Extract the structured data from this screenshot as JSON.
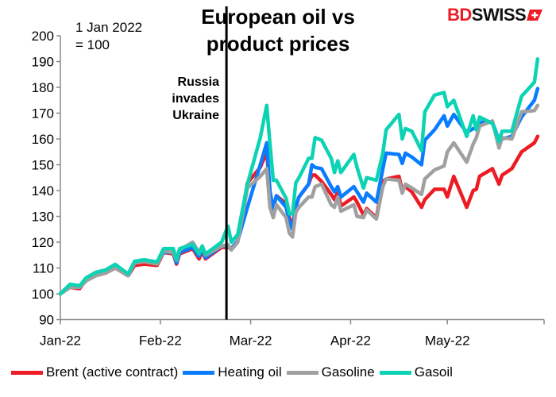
{
  "chart_data": {
    "type": "line",
    "title": "European oil vs product prices",
    "note": "1 Jan 2022\n= 100",
    "annotation": {
      "text": "Russia invades Ukraine",
      "date": "2022-02-22"
    },
    "xlabel": "",
    "ylabel": "",
    "xlim": [
      "2022-01-01",
      "2022-05-31"
    ],
    "ylim": [
      90,
      200
    ],
    "yticks": [
      90,
      100,
      110,
      120,
      130,
      140,
      150,
      160,
      170,
      180,
      190,
      200
    ],
    "xticks": [
      {
        "date": "2022-01-01",
        "label": "Jan-22"
      },
      {
        "date": "2022-02-01",
        "label": "Feb-22"
      },
      {
        "date": "2022-03-01",
        "label": "Mar-22"
      },
      {
        "date": "2022-04-01",
        "label": "Apr-22"
      },
      {
        "date": "2022-05-01",
        "label": "May-22"
      }
    ],
    "grid": false,
    "legend": "bottom",
    "x": [
      "2022-01-01",
      "2022-01-04",
      "2022-01-07",
      "2022-01-09",
      "2022-01-12",
      "2022-01-15",
      "2022-01-18",
      "2022-01-22",
      "2022-01-24",
      "2022-01-27",
      "2022-01-31",
      "2022-02-02",
      "2022-02-05",
      "2022-02-06",
      "2022-02-07",
      "2022-02-11",
      "2022-02-13",
      "2022-02-14",
      "2022-02-15",
      "2022-02-20",
      "2022-02-22",
      "2022-02-23",
      "2022-02-25",
      "2022-02-28",
      "2022-03-04",
      "2022-03-06",
      "2022-03-07",
      "2022-03-08",
      "2022-03-09",
      "2022-03-12",
      "2022-03-13",
      "2022-03-14",
      "2022-03-15",
      "2022-03-16",
      "2022-03-19",
      "2022-03-20",
      "2022-03-21",
      "2022-03-23",
      "2022-03-26",
      "2022-03-27",
      "2022-03-28",
      "2022-03-29",
      "2022-04-02",
      "2022-04-03",
      "2022-04-05",
      "2022-04-06",
      "2022-04-09",
      "2022-04-11",
      "2022-04-12",
      "2022-04-16",
      "2022-04-17",
      "2022-04-18",
      "2022-04-20",
      "2022-04-23",
      "2022-04-24",
      "2022-04-27",
      "2022-04-30",
      "2022-05-01",
      "2022-05-03",
      "2022-05-07",
      "2022-05-09",
      "2022-05-10",
      "2022-05-11",
      "2022-05-15",
      "2022-05-17",
      "2022-05-18",
      "2022-05-21",
      "2022-05-24",
      "2022-05-28",
      "2022-05-29"
    ],
    "series": [
      {
        "name": "Brent (active contract)",
        "color": "#ED1C24",
        "values": [
          100,
          102.5,
          102,
          105.5,
          107.5,
          108,
          110,
          107,
          111,
          111.5,
          111,
          116,
          115.5,
          111.5,
          115.5,
          117.5,
          113.5,
          116.5,
          113.5,
          118,
          118,
          117.5,
          120.5,
          143,
          149,
          155,
          139.5,
          133,
          138,
          135,
          129.5,
          126,
          134,
          137.5,
          142.5,
          146,
          146,
          143.5,
          138.5,
          136.5,
          139.5,
          134,
          137.5,
          135.5,
          130.5,
          133,
          129.5,
          143.5,
          144.5,
          145.5,
          140,
          141.5,
          139.5,
          133.5,
          136.5,
          140.5,
          140.5,
          137.5,
          145.5,
          133.5,
          140,
          140.5,
          145.5,
          148.5,
          142.5,
          146,
          148.5,
          155,
          158.5,
          161
        ]
      },
      {
        "name": "Heating oil",
        "color": "#0A7CFF",
        "values": [
          100,
          103,
          102.5,
          105.5,
          107.5,
          108.5,
          110.5,
          107,
          112,
          112.5,
          112,
          116,
          116,
          112,
          116,
          118,
          114.5,
          117.5,
          114,
          118.5,
          118.5,
          117.5,
          120.5,
          133.5,
          150,
          158.5,
          139.5,
          133,
          138,
          133.5,
          128,
          125,
          133.5,
          137.5,
          142.5,
          150,
          149,
          148.5,
          141.5,
          139.5,
          141.5,
          137.5,
          141.5,
          139.5,
          135.5,
          139,
          135.5,
          148.5,
          154.5,
          154,
          150.5,
          154.5,
          153,
          150,
          159.5,
          163.5,
          169,
          165,
          169.5,
          162.5,
          164,
          164.5,
          166.5,
          166.5,
          159.5,
          160,
          161,
          168.5,
          175,
          179.5
        ]
      },
      {
        "name": "Gasoline",
        "color": "#A0A0A0",
        "values": [
          100,
          102.5,
          102.5,
          105,
          107,
          108,
          110,
          107,
          112,
          112.5,
          111.5,
          116.5,
          116,
          113,
          117,
          120,
          116,
          118.5,
          115,
          118.5,
          119,
          117,
          120,
          141,
          145.5,
          148.5,
          133.5,
          129.5,
          134.5,
          129.5,
          123.5,
          122,
          131.5,
          133.5,
          137.5,
          137.5,
          141.5,
          142.5,
          134.5,
          133.5,
          137.5,
          132,
          134.5,
          130,
          129.5,
          132.5,
          129,
          141.5,
          144.5,
          144,
          139,
          142.5,
          141,
          138.5,
          144.5,
          148,
          149.5,
          155,
          158.5,
          151,
          158,
          160.5,
          165,
          167,
          156.5,
          160.5,
          160,
          170.5,
          171,
          173
        ]
      },
      {
        "name": "Gasoil",
        "color": "#0BD3B3",
        "values": [
          100,
          103.7,
          103.1,
          106.2,
          108.3,
          109.2,
          111.4,
          107.7,
          112.6,
          113.2,
          112.3,
          117.5,
          117.5,
          113.2,
          117.5,
          119.1,
          115.4,
          118.5,
          115.4,
          120,
          126.2,
          120,
          123,
          142.5,
          160.5,
          173,
          158,
          144,
          144,
          137,
          131,
          131,
          143,
          145,
          152.5,
          152.5,
          160.5,
          159.5,
          152.5,
          147,
          151.5,
          147,
          154,
          149,
          141,
          145,
          144,
          154.5,
          163.5,
          169.5,
          160,
          164,
          163,
          155.5,
          170.5,
          177,
          178,
          172.5,
          175,
          161,
          169,
          163.5,
          168.5,
          166,
          159,
          163,
          163,
          176.5,
          182,
          191
        ]
      }
    ]
  },
  "logo": {
    "text_red": "BD",
    "text_dark": "SWISS",
    "icon": "swiss-cross-flag-icon"
  },
  "title_lines": [
    "European oil vs",
    "product prices"
  ],
  "note_lines": [
    "1 Jan 2022",
    "= 100"
  ],
  "annotation_lines": [
    "Russia",
    "invades",
    "Ukraine"
  ]
}
